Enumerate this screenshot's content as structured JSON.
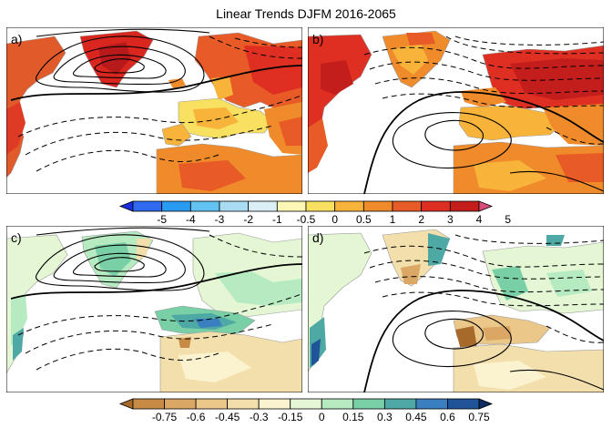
{
  "title": "Linear Trends DJFM 2016-2065",
  "panels": [
    {
      "label": "a)"
    },
    {
      "label": "b)"
    },
    {
      "label": "c)"
    },
    {
      "label": "d)"
    }
  ],
  "colorbars": {
    "temperature": {
      "ticks": [
        "-5",
        "-4",
        "-3",
        "-2",
        "-1",
        "-0.5",
        "0",
        "0.5",
        "1",
        "2",
        "3",
        "4",
        "5"
      ],
      "colors": [
        "#1a2ee0",
        "#2f6af0",
        "#2a9bf2",
        "#62c3f3",
        "#a9dcf2",
        "#daf0f6",
        "#fdf7b5",
        "#f8e061",
        "#f8b43a",
        "#f08b2b",
        "#e85a26",
        "#de2f22",
        "#c41e1c",
        "#d84b7b"
      ]
    },
    "precipitation": {
      "ticks": [
        "-0.75",
        "-0.6",
        "-0.45",
        "-0.3",
        "-0.15",
        "0",
        "0.15",
        "0.3",
        "0.45",
        "0.6",
        "0.75"
      ],
      "colors": [
        "#a76a2a",
        "#c88b45",
        "#dba764",
        "#ebc78a",
        "#f3dfac",
        "#fbf3cf",
        "#e4f6d4",
        "#b6eac0",
        "#79cfa6",
        "#4ea8a3",
        "#3a7fc0",
        "#1f5499",
        "#0d2d62"
      ]
    }
  },
  "colors": {
    "ocean": "#ffffff",
    "land_outline": "#9a9a9a"
  }
}
